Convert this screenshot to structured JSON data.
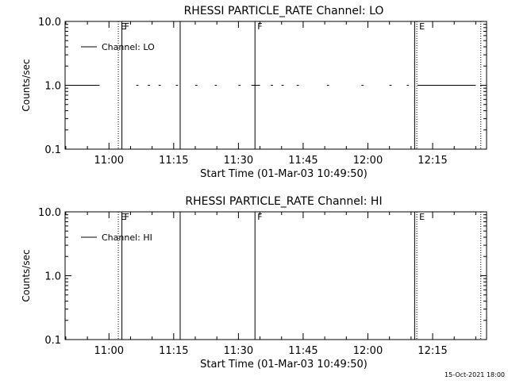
{
  "footer": {
    "generated_date": "15-Oct-2021 18:00"
  },
  "chart_data": [
    {
      "type": "line",
      "title": "RHESSI PARTICLE_RATE Channel: LO",
      "xlabel": "Start Time (01-Mar-03 10:49:50)",
      "ylabel": "Counts/sec",
      "y_scale": "log",
      "ylim": [
        0.1,
        10.0
      ],
      "y_ticks": [
        {
          "value": 0.1,
          "label": "0.1"
        },
        {
          "value": 1.0,
          "label": "1.0"
        },
        {
          "value": 10.0,
          "label": "10.0"
        }
      ],
      "xlim": [
        "10:49:50",
        "12:27:30"
      ],
      "x_ticks": [
        "11:00",
        "11:15",
        "11:30",
        "11:45",
        "12:00",
        "12:15"
      ],
      "legend": {
        "placement": "top-left",
        "entries": [
          "Channel: LO"
        ]
      },
      "series": [
        {
          "name": "Channel: LO",
          "segments": [
            {
              "start": "10:49:50",
              "end": "10:57:50",
              "value": 1.0
            },
            {
              "start": "11:06:20",
              "end": "11:06:50",
              "value": 1.0
            },
            {
              "start": "11:09:00",
              "end": "11:09:30",
              "value": 1.0
            },
            {
              "start": "11:11:30",
              "end": "11:12:00",
              "value": 1.0
            },
            {
              "start": "11:15:30",
              "end": "11:16:00",
              "value": 1.0
            },
            {
              "start": "11:20:00",
              "end": "11:20:30",
              "value": 1.0
            },
            {
              "start": "11:24:30",
              "end": "11:25:00",
              "value": 1.0
            },
            {
              "start": "11:30:00",
              "end": "11:30:30",
              "value": 1.0
            },
            {
              "start": "11:33:00",
              "end": "11:35:00",
              "value": 1.0
            },
            {
              "start": "11:37:30",
              "end": "11:38:00",
              "value": 1.0
            },
            {
              "start": "11:40:00",
              "end": "11:40:30",
              "value": 1.0
            },
            {
              "start": "11:43:30",
              "end": "11:44:00",
              "value": 1.0
            },
            {
              "start": "11:50:30",
              "end": "11:51:00",
              "value": 1.0
            },
            {
              "start": "11:58:30",
              "end": "11:59:00",
              "value": 1.0
            },
            {
              "start": "12:05:00",
              "end": "12:05:30",
              "value": 1.0
            },
            {
              "start": "12:09:00",
              "end": "12:09:30",
              "value": 1.0
            },
            {
              "start": "12:11:30",
              "end": "12:25:00",
              "value": 1.0
            }
          ]
        }
      ],
      "markers": [
        {
          "time": "11:02:10",
          "style": "dotted",
          "label": "E"
        },
        {
          "time": "11:03:00",
          "style": "solid",
          "label": "F"
        },
        {
          "time": "11:16:30",
          "style": "solid",
          "label": ""
        },
        {
          "time": "11:33:50",
          "style": "solid",
          "label": "F"
        },
        {
          "time": "12:10:50",
          "style": "solid",
          "label": ""
        },
        {
          "time": "12:11:20",
          "style": "dotted",
          "label": "E"
        },
        {
          "time": "12:26:10",
          "style": "dotted",
          "label": ""
        }
      ]
    },
    {
      "type": "line",
      "title": "RHESSI PARTICLE_RATE Channel: HI",
      "xlabel": "Start Time (01-Mar-03 10:49:50)",
      "ylabel": "Counts/sec",
      "y_scale": "log",
      "ylim": [
        0.1,
        10.0
      ],
      "y_ticks": [
        {
          "value": 0.1,
          "label": "0.1"
        },
        {
          "value": 1.0,
          "label": "1.0"
        },
        {
          "value": 10.0,
          "label": "10.0"
        }
      ],
      "xlim": [
        "10:49:50",
        "12:27:30"
      ],
      "x_ticks": [
        "11:00",
        "11:15",
        "11:30",
        "11:45",
        "12:00",
        "12:15"
      ],
      "legend": {
        "placement": "top-left",
        "entries": [
          "Channel: HI"
        ]
      },
      "series": [
        {
          "name": "Channel: HI",
          "segments": []
        }
      ],
      "markers": [
        {
          "time": "11:02:10",
          "style": "dotted",
          "label": "E"
        },
        {
          "time": "11:03:00",
          "style": "solid",
          "label": "F"
        },
        {
          "time": "11:16:30",
          "style": "solid",
          "label": ""
        },
        {
          "time": "11:33:50",
          "style": "solid",
          "label": "F"
        },
        {
          "time": "12:10:50",
          "style": "solid",
          "label": ""
        },
        {
          "time": "12:11:20",
          "style": "dotted",
          "label": "E"
        },
        {
          "time": "12:26:10",
          "style": "dotted",
          "label": ""
        }
      ]
    }
  ]
}
